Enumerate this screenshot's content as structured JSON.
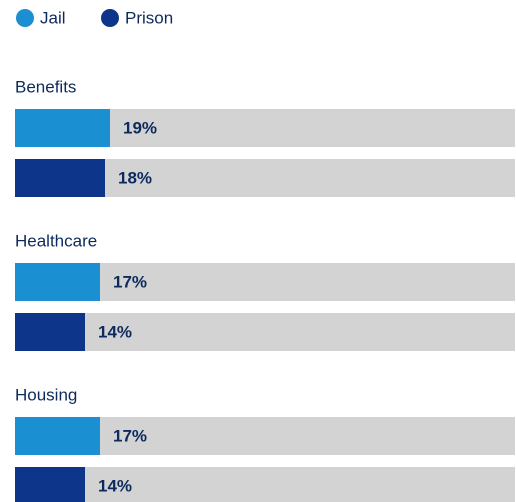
{
  "chart_data": {
    "type": "bar",
    "orientation": "horizontal",
    "categories": [
      "Benefits",
      "Healthcare",
      "Housing"
    ],
    "series": [
      {
        "name": "Jail",
        "color": "#1a8fd1",
        "values": [
          19,
          17,
          17
        ],
        "value_labels": [
          "19%",
          "17%",
          "17%"
        ]
      },
      {
        "name": "Prison",
        "color": "#0d3589",
        "values": [
          18,
          14,
          14
        ],
        "value_labels": [
          "18%",
          "14%",
          "14%"
        ]
      }
    ],
    "xlim": [
      0,
      100
    ],
    "track_color": "#d3d3d3",
    "legend": "top-left"
  }
}
